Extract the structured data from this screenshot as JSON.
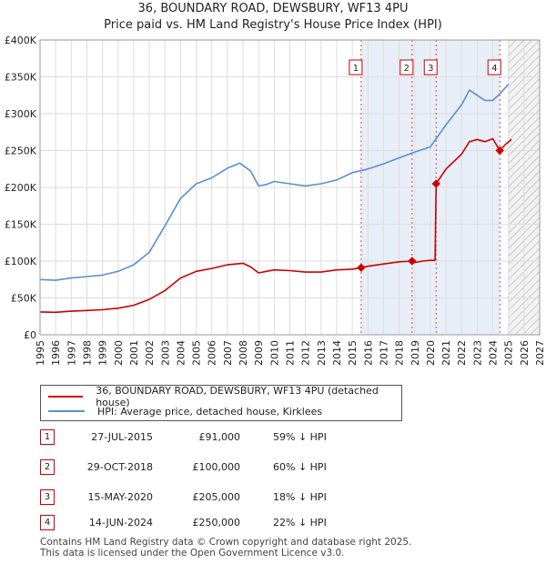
{
  "header": {
    "title": "36, BOUNDARY ROAD, DEWSBURY, WF13 4PU",
    "subtitle": "Price paid vs. HM Land Registry's House Price Index (HPI)"
  },
  "chart_data": {
    "type": "line",
    "xlim": [
      1995,
      2027
    ],
    "ylim": [
      0,
      400000
    ],
    "x_ticks": [
      "1995",
      "1996",
      "1997",
      "1998",
      "1999",
      "2000",
      "2001",
      "2002",
      "2003",
      "2004",
      "2005",
      "2006",
      "2007",
      "2008",
      "2009",
      "2010",
      "2011",
      "2012",
      "2013",
      "2014",
      "2015",
      "2016",
      "2017",
      "2018",
      "2019",
      "2020",
      "2021",
      "2022",
      "2023",
      "2024",
      "2025",
      "2026",
      "2027"
    ],
    "y_ticks": [
      {
        "value": 0,
        "label": "£0"
      },
      {
        "value": 50000,
        "label": "£50K"
      },
      {
        "value": 100000,
        "label": "£100K"
      },
      {
        "value": 150000,
        "label": "£150K"
      },
      {
        "value": 200000,
        "label": "£200K"
      },
      {
        "value": 250000,
        "label": "£250K"
      },
      {
        "value": 300000,
        "label": "£300K"
      },
      {
        "value": 350000,
        "label": "£350K"
      },
      {
        "value": 400000,
        "label": "£400K"
      }
    ],
    "forecast_start": 2025.0,
    "series": [
      {
        "name": "36, BOUNDARY ROAD, DEWSBURY, WF13 4PU (detached house)",
        "color": "#cc0000",
        "points": [
          [
            1995,
            31000
          ],
          [
            1996,
            30500
          ],
          [
            1997,
            32000
          ],
          [
            1998,
            33000
          ],
          [
            1999,
            34000
          ],
          [
            2000,
            36000
          ],
          [
            2001,
            40000
          ],
          [
            2002,
            48000
          ],
          [
            2003,
            60000
          ],
          [
            2004,
            77000
          ],
          [
            2005,
            86000
          ],
          [
            2006,
            90000
          ],
          [
            2007,
            95000
          ],
          [
            2008,
            97000
          ],
          [
            2008.5,
            92000
          ],
          [
            2009,
            84000
          ],
          [
            2009.5,
            86000
          ],
          [
            2010,
            88000
          ],
          [
            2011,
            87000
          ],
          [
            2012,
            85000
          ],
          [
            2013,
            85000
          ],
          [
            2014,
            88000
          ],
          [
            2015,
            89000
          ],
          [
            2015.57,
            91000
          ],
          [
            2016,
            93000
          ],
          [
            2017,
            96000
          ],
          [
            2018,
            99000
          ],
          [
            2018.83,
            100000
          ],
          [
            2019,
            98000
          ],
          [
            2019.5,
            100000
          ],
          [
            2020,
            101000
          ],
          [
            2020.3,
            101000
          ],
          [
            2020.37,
            205000
          ],
          [
            2021,
            225000
          ],
          [
            2022,
            245000
          ],
          [
            2022.5,
            262000
          ],
          [
            2023,
            265000
          ],
          [
            2023.5,
            262000
          ],
          [
            2024,
            266000
          ],
          [
            2024.45,
            250000
          ],
          [
            2024.8,
            258000
          ],
          [
            2025.2,
            265000
          ]
        ]
      },
      {
        "name": "HPI: Average price, detached house, Kirklees",
        "color": "#5a8fd0",
        "points": [
          [
            1995,
            75000
          ],
          [
            1996,
            74000
          ],
          [
            1997,
            77000
          ],
          [
            1998,
            79000
          ],
          [
            1999,
            81000
          ],
          [
            2000,
            86000
          ],
          [
            2001,
            95000
          ],
          [
            2002,
            112000
          ],
          [
            2003,
            148000
          ],
          [
            2004,
            185000
          ],
          [
            2005,
            205000
          ],
          [
            2006,
            213000
          ],
          [
            2007,
            226000
          ],
          [
            2007.8,
            233000
          ],
          [
            2008.5,
            222000
          ],
          [
            2009,
            202000
          ],
          [
            2009.5,
            204000
          ],
          [
            2010,
            208000
          ],
          [
            2011,
            205000
          ],
          [
            2012,
            202000
          ],
          [
            2013,
            205000
          ],
          [
            2014,
            210000
          ],
          [
            2015,
            220000
          ],
          [
            2016,
            225000
          ],
          [
            2017,
            232000
          ],
          [
            2018,
            240000
          ],
          [
            2019,
            248000
          ],
          [
            2020,
            255000
          ],
          [
            2021,
            285000
          ],
          [
            2022,
            312000
          ],
          [
            2022.5,
            332000
          ],
          [
            2023,
            325000
          ],
          [
            2023.5,
            318000
          ],
          [
            2024,
            318000
          ],
          [
            2024.5,
            328000
          ],
          [
            2025,
            340000
          ]
        ]
      }
    ],
    "events": [
      {
        "id": "1",
        "x": 2015.57,
        "y": 91000,
        "date": "27-JUL-2015",
        "price": "£91,000",
        "hpi": "59% ↓ HPI"
      },
      {
        "id": "2",
        "x": 2018.83,
        "y": 100000,
        "date": "29-OCT-2018",
        "price": "£100,000",
        "hpi": "60% ↓ HPI"
      },
      {
        "id": "3",
        "x": 2020.37,
        "y": 205000,
        "date": "15-MAY-2020",
        "price": "£205,000",
        "hpi": "18% ↓ HPI"
      },
      {
        "id": "4",
        "x": 2024.45,
        "y": 250000,
        "date": "14-JUN-2024",
        "price": "£250,000",
        "hpi": "22% ↓ HPI"
      }
    ]
  },
  "legend": {
    "property_label": "36, BOUNDARY ROAD, DEWSBURY, WF13 4PU (detached house)",
    "hpi_label": "HPI: Average price, detached house, Kirklees"
  },
  "footer": {
    "line1": "Contains HM Land Registry data © Crown copyright and database right 2025.",
    "line2": "This data is licensed under the Open Government Licence v3.0."
  },
  "colors": {
    "property": "#cc0000",
    "hpi": "#5a8fd0",
    "marker_box": "#cc0000"
  }
}
